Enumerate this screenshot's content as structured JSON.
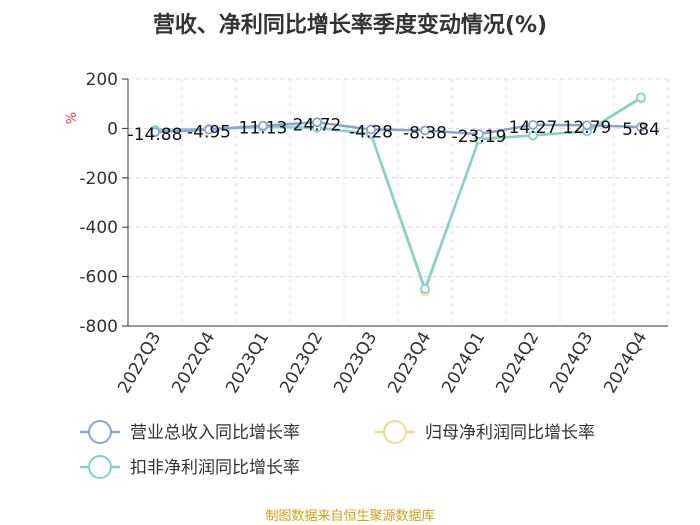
{
  "chart_data": {
    "type": "line",
    "title": "营收、净利同比增长率季度变动情况(%)",
    "ylabel": "%",
    "ylim": [
      -800,
      200
    ],
    "yticks": [
      200,
      0,
      -200,
      -400,
      -600,
      -800
    ],
    "categories": [
      "2022Q3",
      "2022Q4",
      "2023Q1",
      "2023Q2",
      "2023Q3",
      "2023Q4",
      "2024Q1",
      "2024Q2",
      "2024Q3",
      "2024Q4"
    ],
    "series": [
      {
        "name": "营业总收入同比增长率",
        "color": "#8aa4d6",
        "values": [
          -14.88,
          -4.95,
          11.13,
          24.72,
          -4.28,
          -8.38,
          -23.19,
          14.27,
          12.79,
          5.84
        ]
      },
      {
        "name": "归母净利润同比增长率",
        "color": "#f5d79a",
        "values": [
          -8,
          -2,
          10,
          5,
          -25,
          -660,
          -40,
          -30,
          -10,
          120
        ]
      },
      {
        "name": "扣非净利润同比增长率",
        "color": "#7fd3d0",
        "values": [
          -6,
          -3,
          6,
          2,
          -22,
          -650,
          -45,
          -28,
          -12,
          125
        ]
      }
    ],
    "data_labels": [
      "-14.88",
      "-4.95",
      "11.13",
      "24.72",
      "-4.28",
      "-8.38",
      "-23.19",
      "14.27",
      "12.79",
      "5.84"
    ],
    "legend_position": "bottom",
    "source": "制图数据来自恒生聚源数据库"
  }
}
